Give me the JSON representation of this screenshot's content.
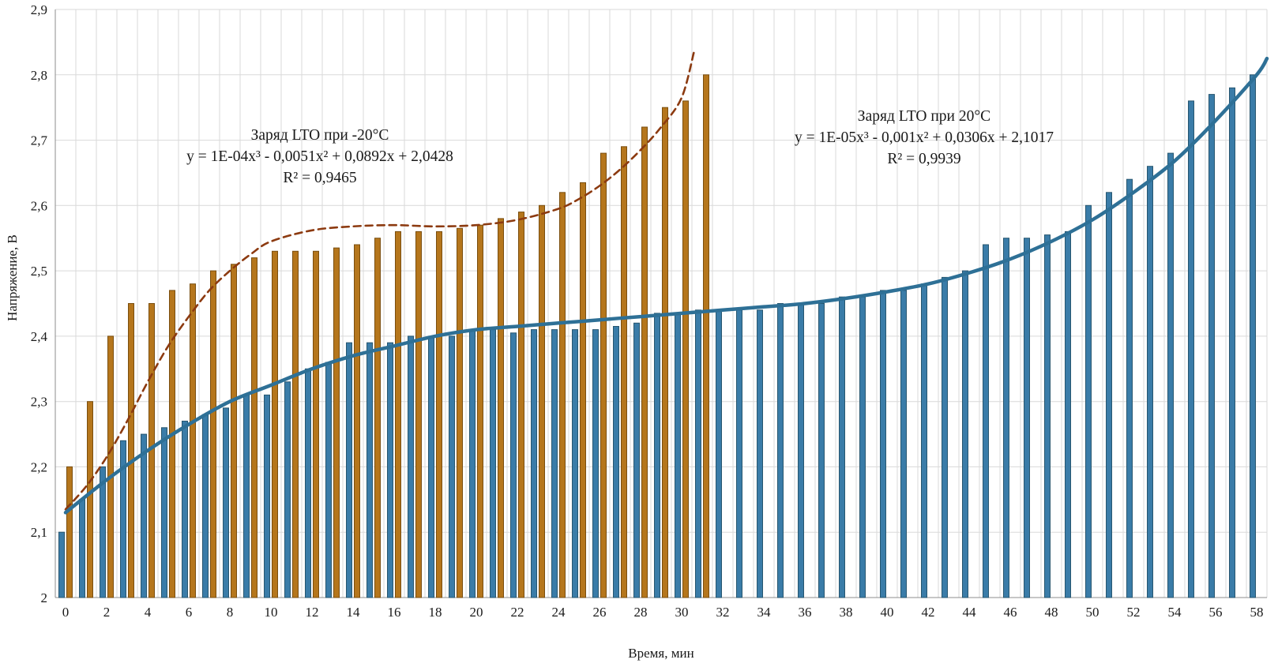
{
  "chart_data": {
    "type": "bar",
    "xlabel": "Время, мин",
    "ylabel": "Напряжение, В",
    "ylim": [
      2,
      2.9
    ],
    "grid": true,
    "y_ticks": [
      {
        "v": 2.0,
        "label": "2"
      },
      {
        "v": 2.1,
        "label": "2,1"
      },
      {
        "v": 2.2,
        "label": "2,2"
      },
      {
        "v": 2.3,
        "label": "2,3"
      },
      {
        "v": 2.4,
        "label": "2,4"
      },
      {
        "v": 2.5,
        "label": "2,5"
      },
      {
        "v": 2.6,
        "label": "2,6"
      },
      {
        "v": 2.7,
        "label": "2,7"
      },
      {
        "v": 2.8,
        "label": "2,8"
      },
      {
        "v": 2.9,
        "label": "2,9"
      }
    ],
    "x_tick_interval": 2,
    "x": [
      0,
      1,
      2,
      3,
      4,
      5,
      6,
      7,
      8,
      9,
      10,
      11,
      12,
      13,
      14,
      15,
      16,
      17,
      18,
      19,
      20,
      21,
      22,
      23,
      24,
      25,
      26,
      27,
      28,
      29,
      30,
      31,
      32,
      33,
      34,
      35,
      36,
      37,
      38,
      39,
      40,
      41,
      42,
      43,
      44,
      45,
      46,
      47,
      48,
      49,
      50,
      51,
      52,
      53,
      54,
      55,
      56,
      57,
      58
    ],
    "series": [
      {
        "name": "Заряд LTO при -20°C",
        "color": "#b5761c",
        "stroke": "#7a4e0f",
        "values": [
          2.2,
          2.3,
          2.4,
          2.45,
          2.45,
          2.47,
          2.48,
          2.5,
          2.51,
          2.52,
          2.53,
          2.53,
          2.53,
          2.535,
          2.54,
          2.55,
          2.56,
          2.56,
          2.56,
          2.565,
          2.57,
          2.58,
          2.59,
          2.6,
          2.62,
          2.635,
          2.68,
          2.69,
          2.72,
          2.75,
          2.76,
          2.8
        ]
      },
      {
        "name": "Заряд LTO при 20°C",
        "color": "#3a7ca8",
        "stroke": "#27566f",
        "values": [
          2.1,
          2.15,
          2.2,
          2.24,
          2.25,
          2.26,
          2.27,
          2.28,
          2.29,
          2.31,
          2.31,
          2.33,
          2.35,
          2.36,
          2.39,
          2.39,
          2.39,
          2.4,
          2.4,
          2.4,
          2.41,
          2.41,
          2.405,
          2.41,
          2.41,
          2.41,
          2.41,
          2.415,
          2.42,
          2.435,
          2.435,
          2.44,
          2.44,
          2.44,
          2.44,
          2.45,
          2.45,
          2.45,
          2.46,
          2.46,
          2.47,
          2.47,
          2.48,
          2.49,
          2.5,
          2.54,
          2.55,
          2.55,
          2.555,
          2.56,
          2.6,
          2.62,
          2.64,
          2.66,
          2.68,
          2.76,
          2.77,
          2.78,
          2.8
        ]
      }
    ],
    "trendlines": [
      {
        "for": "Заряд LTO при -20°C",
        "style": "dashed",
        "color": "#8c3a10",
        "points": [
          [
            0,
            2.135
          ],
          [
            1,
            2.17
          ],
          [
            2,
            2.215
          ],
          [
            3,
            2.27
          ],
          [
            4,
            2.33
          ],
          [
            5,
            2.385
          ],
          [
            6,
            2.43
          ],
          [
            7,
            2.47
          ],
          [
            8,
            2.5
          ],
          [
            9,
            2.525
          ],
          [
            10,
            2.545
          ],
          [
            12,
            2.562
          ],
          [
            14,
            2.568
          ],
          [
            16,
            2.57
          ],
          [
            18,
            2.568
          ],
          [
            20,
            2.57
          ],
          [
            22,
            2.578
          ],
          [
            24,
            2.595
          ],
          [
            25,
            2.61
          ],
          [
            26,
            2.63
          ],
          [
            27,
            2.655
          ],
          [
            28,
            2.685
          ],
          [
            29,
            2.72
          ],
          [
            30,
            2.765
          ],
          [
            30.6,
            2.835
          ]
        ]
      },
      {
        "for": "Заряд LTO при 20°C",
        "style": "solid",
        "color": "#2e7096",
        "points": [
          [
            0,
            2.13
          ],
          [
            2,
            2.18
          ],
          [
            4,
            2.225
          ],
          [
            6,
            2.265
          ],
          [
            8,
            2.3
          ],
          [
            10,
            2.325
          ],
          [
            12,
            2.35
          ],
          [
            14,
            2.37
          ],
          [
            16,
            2.385
          ],
          [
            18,
            2.4
          ],
          [
            20,
            2.41
          ],
          [
            22,
            2.415
          ],
          [
            24,
            2.42
          ],
          [
            26,
            2.425
          ],
          [
            28,
            2.43
          ],
          [
            30,
            2.435
          ],
          [
            32,
            2.44
          ],
          [
            34,
            2.445
          ],
          [
            36,
            2.45
          ],
          [
            38,
            2.458
          ],
          [
            40,
            2.468
          ],
          [
            42,
            2.48
          ],
          [
            44,
            2.497
          ],
          [
            46,
            2.518
          ],
          [
            48,
            2.545
          ],
          [
            50,
            2.578
          ],
          [
            52,
            2.62
          ],
          [
            54,
            2.668
          ],
          [
            56,
            2.73
          ],
          [
            58,
            2.8
          ],
          [
            58.5,
            2.825
          ]
        ]
      }
    ],
    "annotations": [
      {
        "title": "Заряд LTO при -20°C",
        "equation": "y = 1E-04x³ - 0,0051x² + 0,0892x + 2,0428",
        "r2": "R² = 0,9465"
      },
      {
        "title": "Заряд LTO при 20°C",
        "equation": "y = 1E-05x³ - 0,001x² + 0,0306x + 2,1017",
        "r2": "R² = 0,9939"
      }
    ]
  }
}
